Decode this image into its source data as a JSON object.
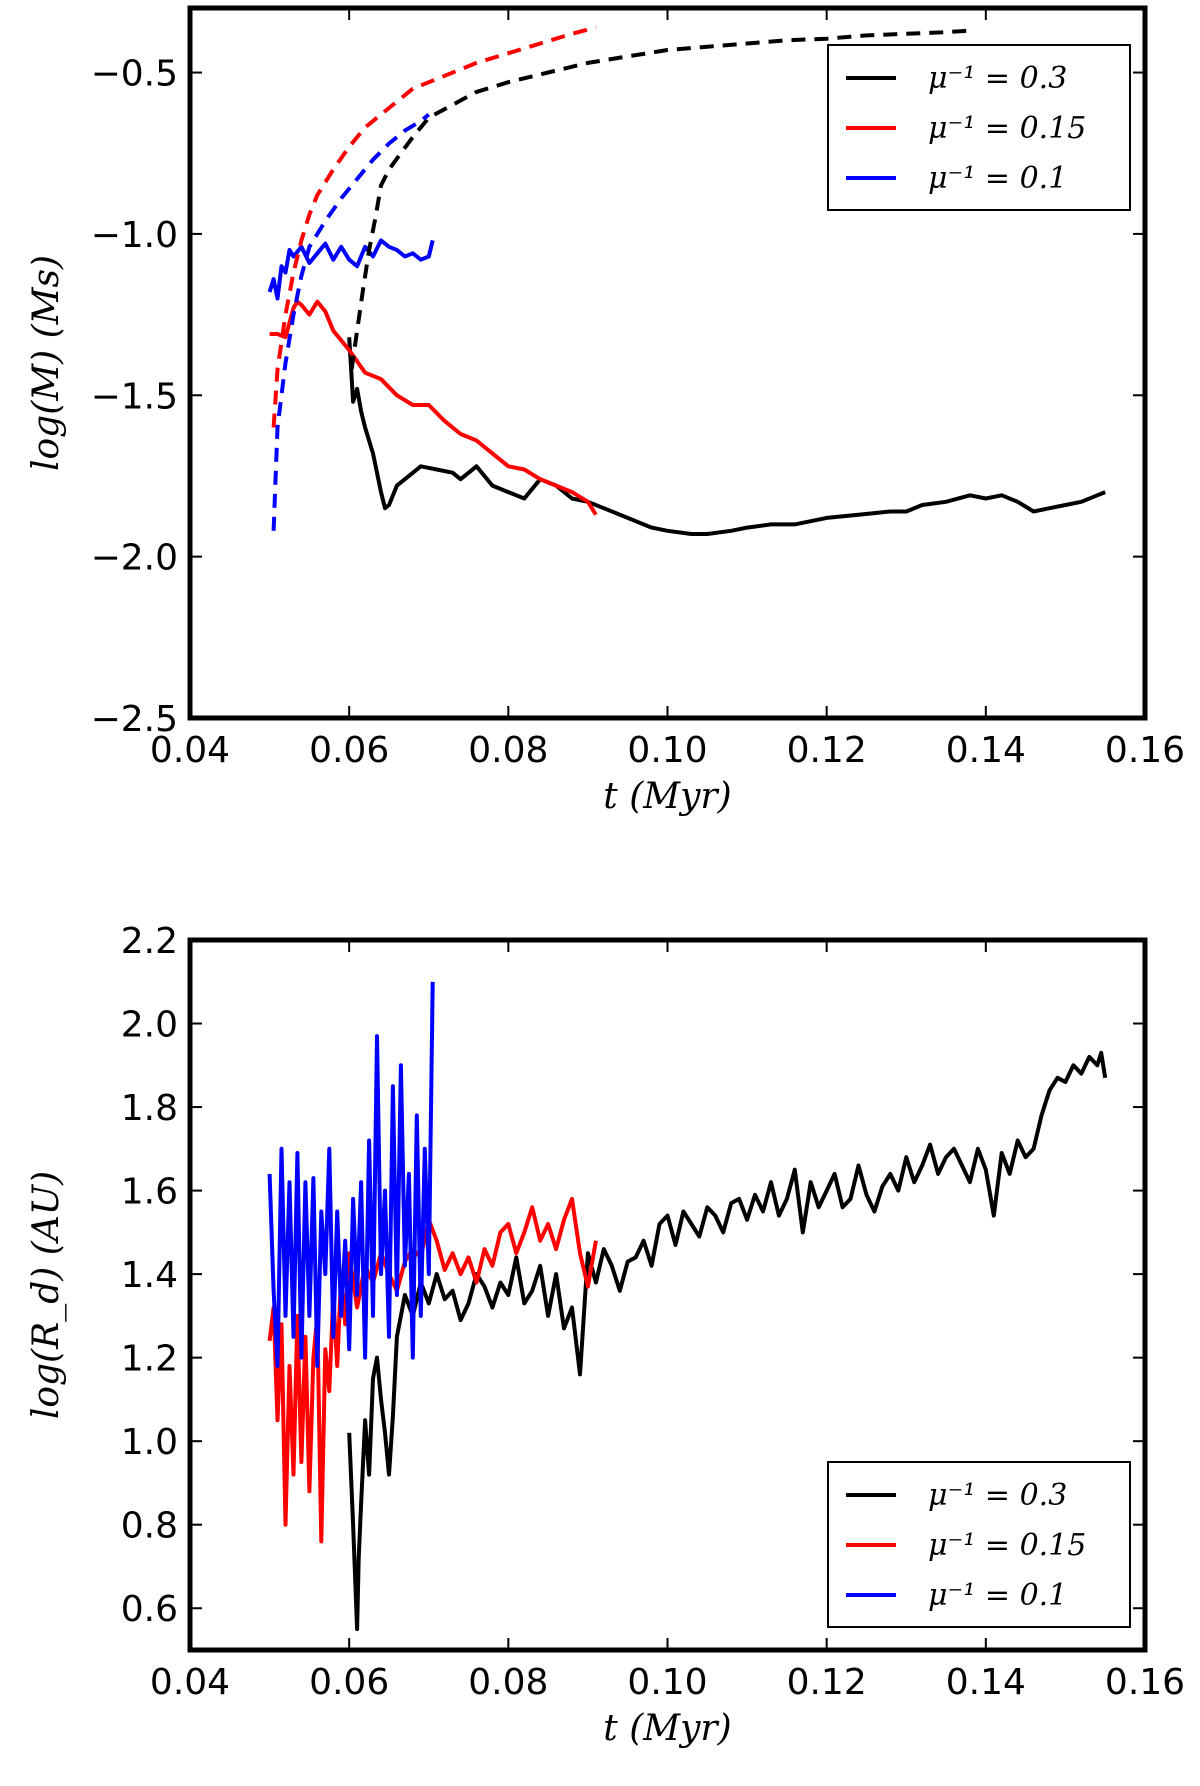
{
  "chart_data": [
    {
      "type": "line",
      "panel": "top",
      "xlabel": "t (Myr)",
      "ylabel": "log(M) (Ms)",
      "xlim": [
        0.04,
        0.16
      ],
      "ylim": [
        -2.5,
        -0.3
      ],
      "xticks": [
        0.04,
        0.06,
        0.08,
        0.1,
        0.12,
        0.14,
        0.16
      ],
      "xtick_labels": [
        "0.04",
        "0.06",
        "0.08",
        "0.10",
        "0.12",
        "0.14",
        "0.16"
      ],
      "yticks": [
        -2.5,
        -2.0,
        -1.5,
        -1.0,
        -0.5
      ],
      "ytick_labels": [
        "−2.5",
        "−2.0",
        "−1.5",
        "−1.0",
        "−0.5"
      ],
      "grid": false,
      "legend_position": "top-right",
      "legend": [
        "μ⁻¹ = 0.3",
        "μ⁻¹ = 0.15",
        "μ⁻¹ = 0.1"
      ],
      "series": [
        {
          "name": "μ⁻¹ = 0.3",
          "color": "#000000",
          "style": "solid",
          "x": [
            0.06,
            0.0605,
            0.061,
            0.0615,
            0.062,
            0.063,
            0.064,
            0.0645,
            0.065,
            0.066,
            0.067,
            0.069,
            0.071,
            0.073,
            0.074,
            0.076,
            0.078,
            0.08,
            0.082,
            0.084,
            0.086,
            0.088,
            0.09,
            0.092,
            0.095,
            0.098,
            0.1,
            0.103,
            0.105,
            0.108,
            0.11,
            0.113,
            0.116,
            0.12,
            0.124,
            0.128,
            0.13,
            0.132,
            0.135,
            0.138,
            0.14,
            0.142,
            0.144,
            0.146,
            0.148,
            0.15,
            0.152,
            0.154,
            0.155
          ],
          "y": [
            -1.32,
            -1.52,
            -1.48,
            -1.55,
            -1.6,
            -1.68,
            -1.8,
            -1.85,
            -1.84,
            -1.78,
            -1.76,
            -1.72,
            -1.73,
            -1.74,
            -1.76,
            -1.72,
            -1.78,
            -1.8,
            -1.82,
            -1.76,
            -1.78,
            -1.82,
            -1.83,
            -1.85,
            -1.88,
            -1.91,
            -1.92,
            -1.93,
            -1.93,
            -1.92,
            -1.91,
            -1.9,
            -1.9,
            -1.88,
            -1.87,
            -1.86,
            -1.86,
            -1.84,
            -1.83,
            -1.81,
            -1.82,
            -1.81,
            -1.83,
            -1.86,
            -1.85,
            -1.84,
            -1.83,
            -1.81,
            -1.8
          ]
        },
        {
          "name": "μ⁻¹ = 0.15",
          "color": "#ff0000",
          "style": "solid",
          "x": [
            0.05,
            0.051,
            0.052,
            0.053,
            0.0535,
            0.054,
            0.055,
            0.056,
            0.057,
            0.058,
            0.06,
            0.062,
            0.064,
            0.066,
            0.068,
            0.07,
            0.072,
            0.074,
            0.076,
            0.078,
            0.08,
            0.082,
            0.084,
            0.086,
            0.088,
            0.09,
            0.091
          ],
          "y": [
            -1.31,
            -1.31,
            -1.32,
            -1.23,
            -1.21,
            -1.22,
            -1.25,
            -1.21,
            -1.24,
            -1.3,
            -1.36,
            -1.43,
            -1.45,
            -1.5,
            -1.53,
            -1.53,
            -1.58,
            -1.62,
            -1.64,
            -1.68,
            -1.72,
            -1.73,
            -1.76,
            -1.78,
            -1.8,
            -1.83,
            -1.87
          ]
        },
        {
          "name": "μ⁻¹ = 0.1",
          "color": "#0000ff",
          "style": "solid",
          "x": [
            0.05,
            0.0505,
            0.051,
            0.0515,
            0.052,
            0.0525,
            0.053,
            0.054,
            0.055,
            0.056,
            0.057,
            0.058,
            0.059,
            0.06,
            0.061,
            0.062,
            0.063,
            0.064,
            0.065,
            0.066,
            0.067,
            0.068,
            0.069,
            0.07,
            0.0705
          ],
          "y": [
            -1.18,
            -1.14,
            -1.2,
            -1.1,
            -1.12,
            -1.05,
            -1.07,
            -1.04,
            -1.09,
            -1.06,
            -1.03,
            -1.08,
            -1.04,
            -1.08,
            -1.1,
            -1.04,
            -1.07,
            -1.02,
            -1.04,
            -1.05,
            -1.07,
            -1.06,
            -1.08,
            -1.07,
            -1.02
          ]
        },
        {
          "name": "",
          "color": "#000000",
          "style": "dashed",
          "x": [
            0.0603,
            0.061,
            0.0617,
            0.0625,
            0.0633,
            0.064,
            0.065,
            0.0665,
            0.068,
            0.07,
            0.073,
            0.076,
            0.08,
            0.085,
            0.09,
            0.095,
            0.1,
            0.105,
            0.11,
            0.115,
            0.12,
            0.125,
            0.13,
            0.135,
            0.138
          ],
          "y": [
            -1.42,
            -1.3,
            -1.18,
            -1.05,
            -0.95,
            -0.85,
            -0.8,
            -0.75,
            -0.7,
            -0.64,
            -0.6,
            -0.56,
            -0.53,
            -0.5,
            -0.47,
            -0.45,
            -0.43,
            -0.42,
            -0.41,
            -0.4,
            -0.395,
            -0.385,
            -0.38,
            -0.375,
            -0.37
          ]
        },
        {
          "name": "",
          "color": "#ff0000",
          "style": "dashed",
          "x": [
            0.0505,
            0.051,
            0.052,
            0.053,
            0.054,
            0.055,
            0.056,
            0.058,
            0.06,
            0.062,
            0.065,
            0.068,
            0.072,
            0.076,
            0.08,
            0.084,
            0.088,
            0.091
          ],
          "y": [
            -1.6,
            -1.42,
            -1.25,
            -1.12,
            -1.02,
            -0.94,
            -0.88,
            -0.8,
            -0.73,
            -0.67,
            -0.61,
            -0.55,
            -0.51,
            -0.47,
            -0.44,
            -0.41,
            -0.38,
            -0.36
          ]
        },
        {
          "name": "",
          "color": "#0000ff",
          "style": "dashed",
          "x": [
            0.0505,
            0.051,
            0.052,
            0.053,
            0.054,
            0.055,
            0.057,
            0.059,
            0.061,
            0.063,
            0.065,
            0.067,
            0.069,
            0.07
          ],
          "y": [
            -1.92,
            -1.6,
            -1.4,
            -1.25,
            -1.13,
            -1.04,
            -0.96,
            -0.89,
            -0.83,
            -0.77,
            -0.72,
            -0.68,
            -0.65,
            -0.63
          ]
        }
      ]
    },
    {
      "type": "line",
      "panel": "bottom",
      "xlabel": "t (Myr)",
      "ylabel": "log(R_d) (AU)",
      "xlim": [
        0.04,
        0.16
      ],
      "ylim": [
        0.5,
        2.2
      ],
      "xticks": [
        0.04,
        0.06,
        0.08,
        0.1,
        0.12,
        0.14,
        0.16
      ],
      "xtick_labels": [
        "0.04",
        "0.06",
        "0.08",
        "0.10",
        "0.12",
        "0.14",
        "0.16"
      ],
      "yticks": [
        0.6,
        0.8,
        1.0,
        1.2,
        1.4,
        1.6,
        1.8,
        2.0,
        2.2
      ],
      "ytick_labels": [
        "0.6",
        "0.8",
        "1.0",
        "1.2",
        "1.4",
        "1.6",
        "1.8",
        "2.0",
        "2.2"
      ],
      "grid": false,
      "legend_position": "bottom-right",
      "legend": [
        "μ⁻¹ = 0.3",
        "μ⁻¹ = 0.15",
        "μ⁻¹ = 0.1"
      ],
      "series": [
        {
          "name": "μ⁻¹ = 0.3",
          "color": "#000000",
          "style": "solid",
          "x": [
            0.06,
            0.0605,
            0.061,
            0.0612,
            0.0615,
            0.062,
            0.0625,
            0.063,
            0.0635,
            0.064,
            0.0645,
            0.065,
            0.0655,
            0.066,
            0.067,
            0.068,
            0.069,
            0.07,
            0.071,
            0.072,
            0.073,
            0.074,
            0.075,
            0.076,
            0.077,
            0.078,
            0.079,
            0.08,
            0.081,
            0.082,
            0.083,
            0.084,
            0.085,
            0.086,
            0.087,
            0.088,
            0.089,
            0.09,
            0.091,
            0.092,
            0.093,
            0.094,
            0.095,
            0.096,
            0.097,
            0.098,
            0.099,
            0.1,
            0.101,
            0.102,
            0.103,
            0.104,
            0.105,
            0.106,
            0.107,
            0.108,
            0.109,
            0.11,
            0.111,
            0.112,
            0.113,
            0.114,
            0.115,
            0.116,
            0.117,
            0.118,
            0.119,
            0.12,
            0.121,
            0.122,
            0.123,
            0.124,
            0.125,
            0.126,
            0.127,
            0.128,
            0.129,
            0.13,
            0.131,
            0.132,
            0.133,
            0.134,
            0.135,
            0.136,
            0.137,
            0.138,
            0.139,
            0.14,
            0.141,
            0.142,
            0.143,
            0.144,
            0.145,
            0.146,
            0.147,
            0.148,
            0.149,
            0.15,
            0.151,
            0.152,
            0.153,
            0.154,
            0.1545,
            0.155
          ],
          "y": [
            1.02,
            0.8,
            0.55,
            0.72,
            0.85,
            1.05,
            0.92,
            1.15,
            1.2,
            1.1,
            1.02,
            0.92,
            1.06,
            1.25,
            1.35,
            1.3,
            1.38,
            1.33,
            1.4,
            1.34,
            1.36,
            1.29,
            1.33,
            1.4,
            1.37,
            1.32,
            1.38,
            1.35,
            1.44,
            1.33,
            1.36,
            1.42,
            1.3,
            1.4,
            1.27,
            1.32,
            1.16,
            1.45,
            1.38,
            1.46,
            1.42,
            1.36,
            1.43,
            1.44,
            1.48,
            1.42,
            1.52,
            1.54,
            1.47,
            1.55,
            1.52,
            1.49,
            1.56,
            1.54,
            1.5,
            1.57,
            1.58,
            1.53,
            1.59,
            1.55,
            1.62,
            1.54,
            1.58,
            1.65,
            1.5,
            1.62,
            1.56,
            1.6,
            1.64,
            1.56,
            1.58,
            1.66,
            1.59,
            1.55,
            1.61,
            1.64,
            1.6,
            1.68,
            1.62,
            1.66,
            1.71,
            1.64,
            1.68,
            1.7,
            1.66,
            1.62,
            1.7,
            1.65,
            1.54,
            1.69,
            1.64,
            1.72,
            1.68,
            1.7,
            1.78,
            1.84,
            1.87,
            1.86,
            1.9,
            1.88,
            1.92,
            1.9,
            1.93,
            1.87
          ]
        },
        {
          "name": "μ⁻¹ = 0.15",
          "color": "#ff0000",
          "style": "solid",
          "x": [
            0.05,
            0.0505,
            0.051,
            0.0515,
            0.052,
            0.0525,
            0.053,
            0.0535,
            0.054,
            0.0545,
            0.055,
            0.0555,
            0.056,
            0.0565,
            0.057,
            0.0575,
            0.058,
            0.0585,
            0.059,
            0.0595,
            0.06,
            0.061,
            0.062,
            0.063,
            0.064,
            0.065,
            0.066,
            0.067,
            0.068,
            0.069,
            0.07,
            0.071,
            0.072,
            0.073,
            0.074,
            0.075,
            0.076,
            0.077,
            0.078,
            0.079,
            0.08,
            0.081,
            0.082,
            0.083,
            0.084,
            0.085,
            0.086,
            0.087,
            0.088,
            0.089,
            0.09,
            0.091
          ],
          "y": [
            1.24,
            1.32,
            1.05,
            1.28,
            0.8,
            1.18,
            0.92,
            1.3,
            0.95,
            1.25,
            0.88,
            1.2,
            1.3,
            0.76,
            1.22,
            1.12,
            1.35,
            1.18,
            1.4,
            1.28,
            1.45,
            1.32,
            1.42,
            1.38,
            1.45,
            1.4,
            1.36,
            1.43,
            1.46,
            1.44,
            1.53,
            1.48,
            1.41,
            1.45,
            1.4,
            1.44,
            1.38,
            1.46,
            1.42,
            1.5,
            1.52,
            1.45,
            1.5,
            1.56,
            1.48,
            1.52,
            1.46,
            1.53,
            1.58,
            1.45,
            1.37,
            1.48
          ]
        },
        {
          "name": "μ⁻¹ = 0.1",
          "color": "#0000ff",
          "style": "solid",
          "x": [
            0.05,
            0.0505,
            0.051,
            0.0515,
            0.052,
            0.0525,
            0.053,
            0.0535,
            0.054,
            0.0545,
            0.055,
            0.0555,
            0.056,
            0.0565,
            0.057,
            0.0575,
            0.058,
            0.0585,
            0.059,
            0.0595,
            0.06,
            0.0605,
            0.061,
            0.0615,
            0.062,
            0.0625,
            0.063,
            0.0635,
            0.064,
            0.0645,
            0.065,
            0.0655,
            0.066,
            0.0665,
            0.067,
            0.0675,
            0.068,
            0.0685,
            0.069,
            0.0695,
            0.07,
            0.0705
          ],
          "y": [
            1.64,
            1.36,
            1.18,
            1.7,
            1.3,
            1.62,
            1.25,
            1.69,
            1.2,
            1.62,
            1.3,
            1.63,
            1.18,
            1.55,
            1.4,
            1.7,
            1.25,
            1.55,
            1.3,
            1.48,
            1.22,
            1.58,
            1.35,
            1.62,
            1.2,
            1.72,
            1.3,
            1.97,
            1.4,
            1.6,
            1.25,
            1.85,
            1.35,
            1.9,
            1.42,
            1.64,
            1.2,
            1.78,
            1.3,
            1.7,
            1.4,
            2.1
          ]
        }
      ]
    }
  ]
}
